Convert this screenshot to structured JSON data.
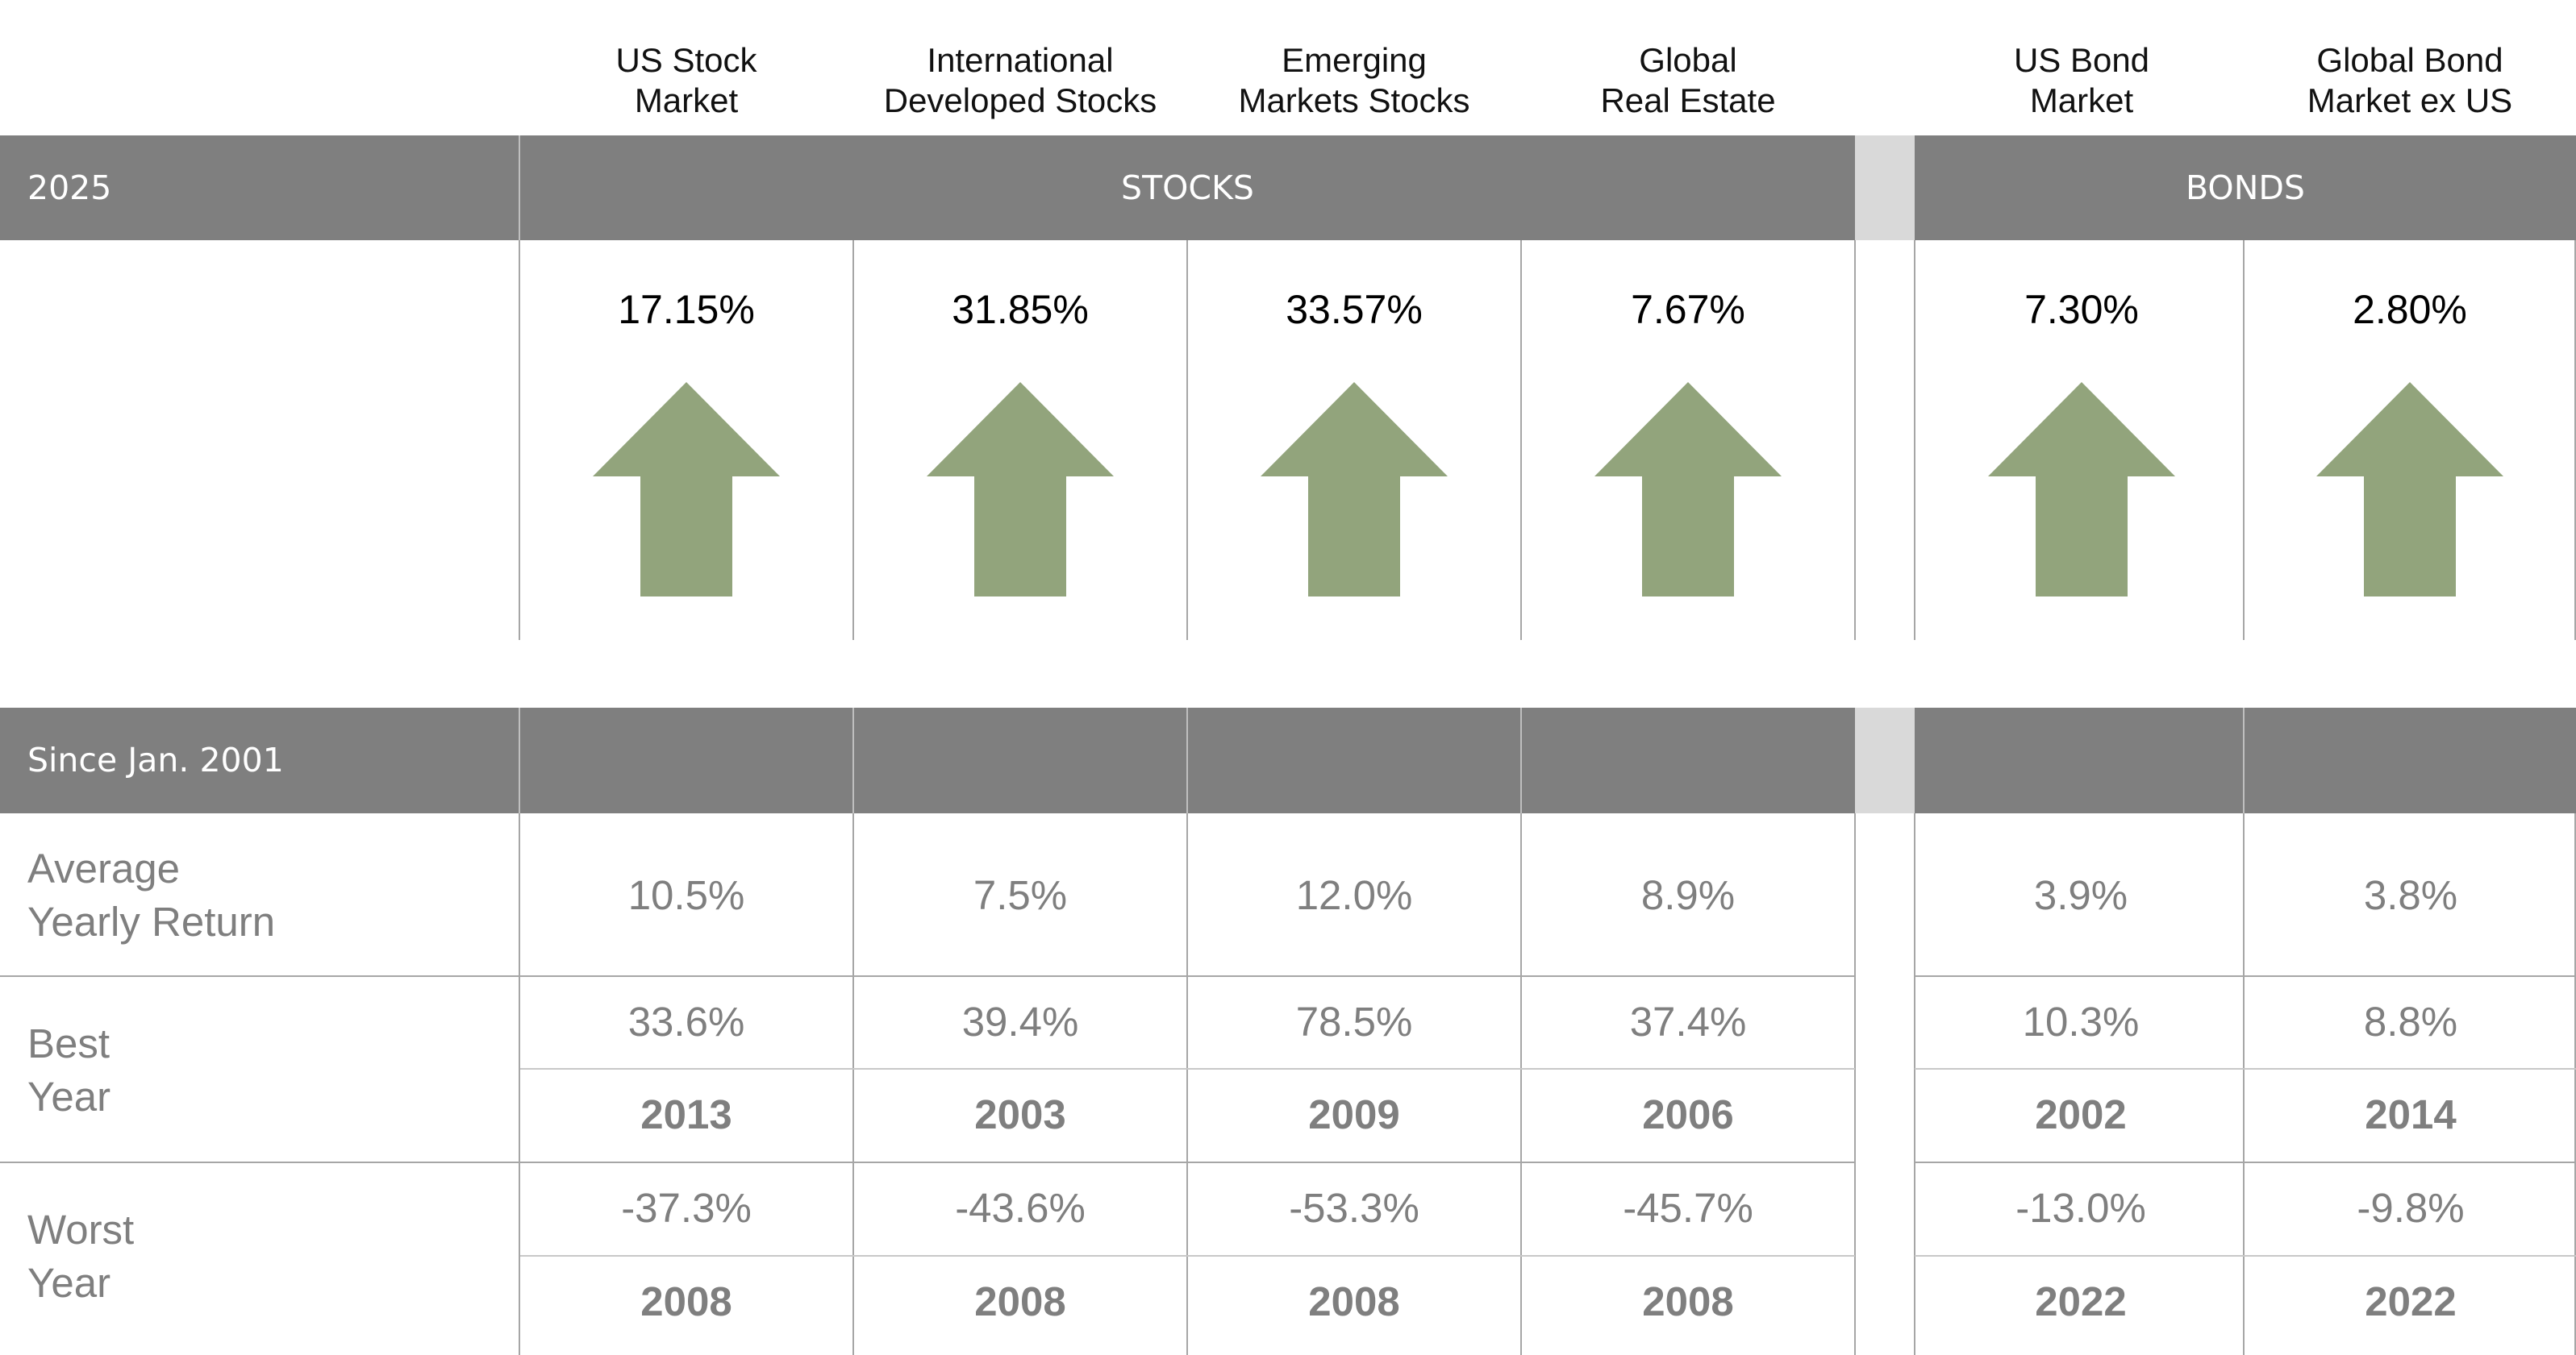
{
  "columns": [
    {
      "line1": "US Stock",
      "line2": "Market"
    },
    {
      "line1": "International",
      "line2": "Developed Stocks"
    },
    {
      "line1": "Emerging",
      "line2": "Markets Stocks"
    },
    {
      "line1": "Global",
      "line2": "Real Estate"
    },
    {
      "line1": "US Bond",
      "line2": "Market"
    },
    {
      "line1": "Global Bond",
      "line2": "Market ex US"
    }
  ],
  "top_band": {
    "year": "2025",
    "stocks_label": "STOCKS",
    "bonds_label": "BONDS"
  },
  "returns_2025": [
    "17.15%",
    "31.85%",
    "33.57%",
    "7.67%",
    "7.30%",
    "2.80%"
  ],
  "bottom_band": {
    "label": "Since Jan. 2001"
  },
  "rows": {
    "average": {
      "line1": "Average",
      "line2": "Yearly Return",
      "values": [
        "10.5%",
        "7.5%",
        "12.0%",
        "8.9%",
        "3.9%",
        "3.8%"
      ]
    },
    "best": {
      "line1": "Best",
      "line2": "Year",
      "values": [
        "33.6%",
        "39.4%",
        "78.5%",
        "37.4%",
        "10.3%",
        "8.8%"
      ],
      "years": [
        "2013",
        "2003",
        "2009",
        "2006",
        "2002",
        "2014"
      ]
    },
    "worst": {
      "line1": "Worst",
      "line2": "Year",
      "values": [
        "-37.3%",
        "-43.6%",
        "-53.3%",
        "-45.7%",
        "-13.0%",
        "-9.8%"
      ],
      "years": [
        "2008",
        "2008",
        "2008",
        "2008",
        "2022",
        "2022"
      ]
    }
  },
  "colors": {
    "band": "#7f7f7f",
    "band_gap": "#d9d9d9",
    "arrow_up": "#92a47c",
    "muted_text": "#7f7f7f"
  },
  "chart_data": {
    "type": "table",
    "columns": [
      "US Stock Market",
      "International Developed Stocks",
      "Emerging Markets Stocks",
      "Global Real Estate",
      "US Bond Market",
      "Global Bond Market ex US"
    ],
    "groups": [
      {
        "name": "STOCKS",
        "columns": [
          0,
          1,
          2,
          3
        ]
      },
      {
        "name": "BONDS",
        "columns": [
          4,
          5
        ]
      }
    ],
    "returns_2025_percent": [
      17.15,
      31.85,
      33.57,
      7.67,
      7.3,
      2.8
    ],
    "average_yearly_return_percent": [
      10.5,
      7.5,
      12.0,
      8.9,
      3.9,
      3.8
    ],
    "best_year_return_percent": [
      33.6,
      39.4,
      78.5,
      37.4,
      10.3,
      8.8
    ],
    "best_year": [
      2013,
      2003,
      2009,
      2006,
      2002,
      2014
    ],
    "worst_year_return_percent": [
      -37.3,
      -43.6,
      -53.3,
      -45.7,
      -13.0,
      -9.8
    ],
    "worst_year": [
      2008,
      2008,
      2008,
      2008,
      2022,
      2022
    ]
  }
}
